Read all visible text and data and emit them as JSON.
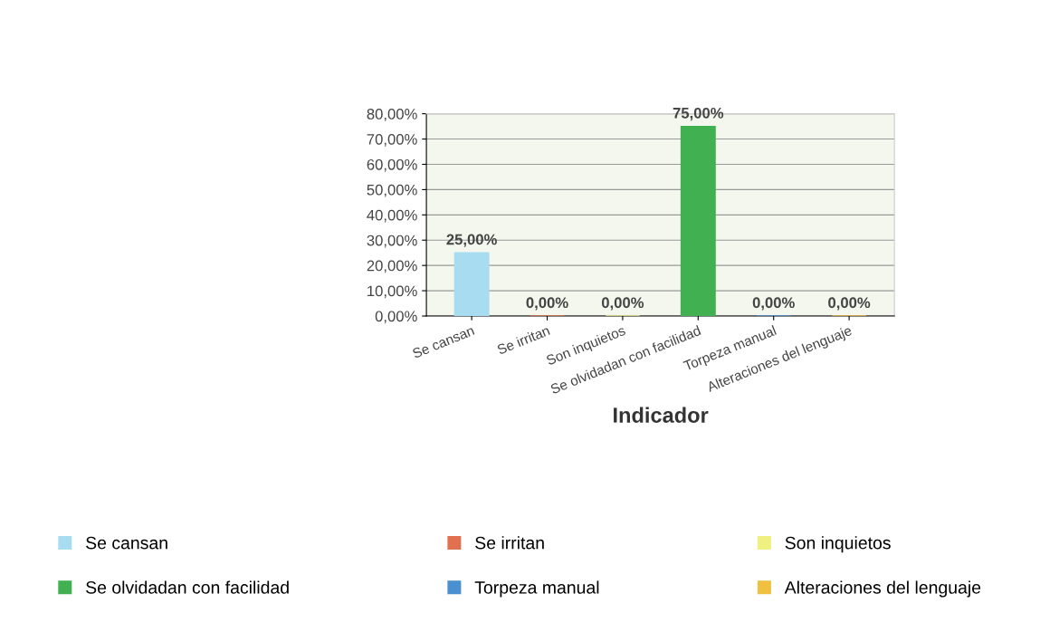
{
  "chart_data": {
    "type": "bar",
    "xlabel": "Indicador",
    "categories": [
      "Se cansan",
      "Se irritan",
      "Son inquietos",
      "Se olvidadan con facilidad",
      "Torpeza manual",
      "Alteraciones del lenguaje"
    ],
    "series": [
      {
        "name": "Se cansan",
        "color": "#a8dcf0",
        "values": [
          25,
          null,
          null,
          null,
          null,
          null
        ],
        "value_labels": [
          "25,00%",
          null,
          null,
          null,
          null,
          null
        ]
      },
      {
        "name": "Se irritan",
        "color": "#e07050",
        "values": [
          null,
          0,
          null,
          null,
          null,
          null
        ],
        "value_labels": [
          null,
          "0,00%",
          null,
          null,
          null,
          null
        ]
      },
      {
        "name": "Son inquietos",
        "color": "#f0f080",
        "values": [
          null,
          null,
          0,
          null,
          null,
          null
        ],
        "value_labels": [
          null,
          null,
          "0,00%",
          null,
          null,
          null
        ]
      },
      {
        "name": "Se olvidadan con facilidad",
        "color": "#40b050",
        "values": [
          null,
          null,
          null,
          75,
          null,
          null
        ],
        "value_labels": [
          null,
          null,
          null,
          "75,00%",
          null,
          null
        ]
      },
      {
        "name": "Torpeza manual",
        "color": "#4a90d0",
        "values": [
          null,
          null,
          null,
          null,
          0,
          null
        ],
        "value_labels": [
          null,
          null,
          null,
          null,
          "0,00%",
          null
        ]
      },
      {
        "name": "Alteraciones del lenguaje",
        "color": "#f0c040",
        "values": [
          null,
          null,
          null,
          null,
          null,
          0
        ],
        "value_labels": [
          null,
          null,
          null,
          null,
          null,
          "0,00%"
        ]
      }
    ],
    "ylim": [
      0,
      80
    ],
    "yticks": [
      {
        "value": 0,
        "label": "0,00%"
      },
      {
        "value": 10,
        "label": "10,00%"
      },
      {
        "value": 20,
        "label": "20,00%"
      },
      {
        "value": 30,
        "label": "30,00%"
      },
      {
        "value": 40,
        "label": "40,00%"
      },
      {
        "value": 50,
        "label": "50,00%"
      },
      {
        "value": 60,
        "label": "60,00%"
      },
      {
        "value": 70,
        "label": "70,00%"
      },
      {
        "value": 80,
        "label": "80,00%"
      }
    ],
    "grid": "y",
    "legend": "bottom"
  }
}
